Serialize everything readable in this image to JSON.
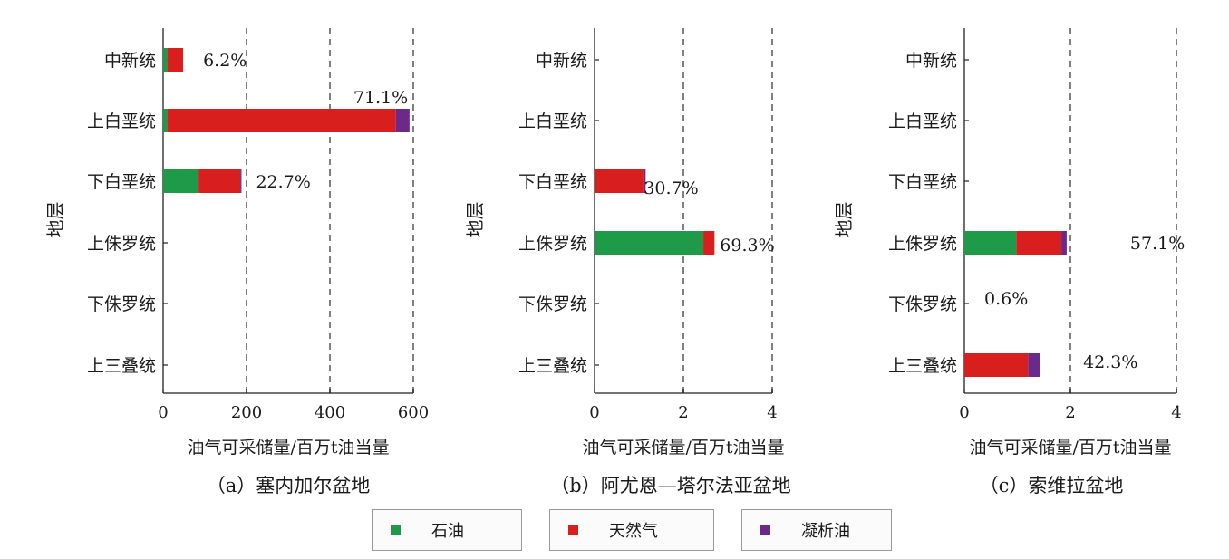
{
  "chart_data": [
    {
      "type": "bar",
      "stacked": true,
      "orientation": "horizontal",
      "caption": "（a）塞内加尔盆地",
      "ylabel": "地层",
      "xlabel": "油气可采储量/百万t油当量",
      "categories": [
        "中新统",
        "上白垩统",
        "下白垩统",
        "上侏罗统",
        "下侏罗统",
        "上三叠统"
      ],
      "xlim": [
        0,
        600
      ],
      "xticks": [
        0,
        200,
        400,
        600
      ],
      "series": [
        {
          "name": "石油",
          "values": [
            10,
            10,
            85,
            0,
            0,
            0
          ]
        },
        {
          "name": "天然气",
          "values": [
            38,
            548,
            100,
            0,
            0,
            0
          ]
        },
        {
          "name": "凝析油",
          "values": [
            0,
            33,
            3,
            0,
            0,
            0
          ]
        }
      ],
      "annotations": [
        "6.2%",
        "71.1%",
        "22.7%",
        "",
        "",
        ""
      ]
    },
    {
      "type": "bar",
      "stacked": true,
      "orientation": "horizontal",
      "caption": "（b）阿尤恩—塔尔法亚盆地",
      "ylabel": "地层",
      "xlabel": "油气可采储量/百万t油当量",
      "categories": [
        "中新统",
        "上白垩统",
        "下白垩统",
        "上侏罗统",
        "下侏罗统",
        "上三叠统"
      ],
      "xlim": [
        0,
        4
      ],
      "xticks": [
        0,
        2,
        4
      ],
      "series": [
        {
          "name": "石油",
          "values": [
            0,
            0,
            0,
            2.45,
            0,
            0
          ]
        },
        {
          "name": "天然气",
          "values": [
            0,
            0,
            1.1,
            0.25,
            0,
            0
          ]
        },
        {
          "name": "凝析油",
          "values": [
            0,
            0,
            0.05,
            0,
            0,
            0
          ]
        }
      ],
      "annotations": [
        "",
        "",
        "30.7%",
        "69.3%",
        "",
        ""
      ]
    },
    {
      "type": "bar",
      "stacked": true,
      "orientation": "horizontal",
      "caption": "（c）索维拉盆地",
      "ylabel": "地层",
      "xlabel": "油气可采储量/百万t油当量",
      "categories": [
        "中新统",
        "上白垩统",
        "下白垩统",
        "上侏罗统",
        "下侏罗统",
        "上三叠统"
      ],
      "xlim": [
        0,
        4
      ],
      "xticks": [
        0,
        2,
        4
      ],
      "series": [
        {
          "name": "石油",
          "values": [
            0,
            0,
            0,
            0.98,
            0,
            0
          ]
        },
        {
          "name": "天然气",
          "values": [
            0,
            0,
            0,
            0.85,
            0,
            1.2
          ]
        },
        {
          "name": "凝析油",
          "values": [
            0,
            0,
            0,
            0.1,
            0,
            0.22
          ]
        }
      ],
      "annotations": [
        "",
        "",
        "",
        "57.1%",
        "0.6%",
        "42.3%"
      ]
    }
  ],
  "legend": [
    {
      "name": "石油",
      "color": "#1f9a48"
    },
    {
      "name": "天然气",
      "color": "#d91e1e"
    },
    {
      "name": "凝析油",
      "color": "#6b2a8a"
    }
  ]
}
